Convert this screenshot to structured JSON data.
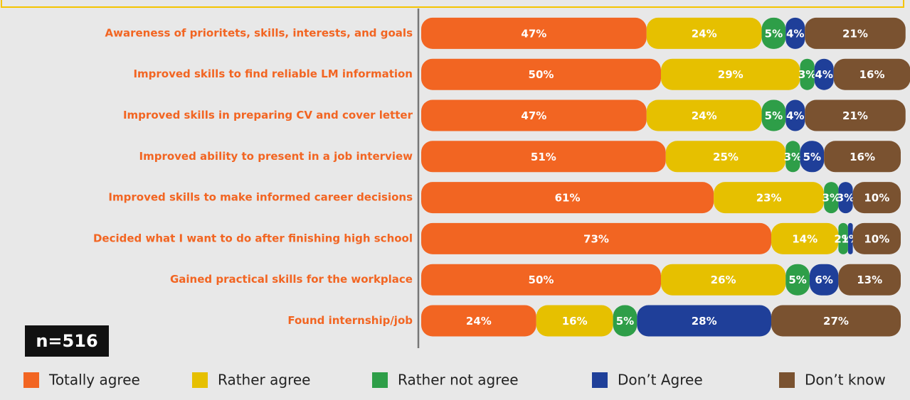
{
  "chart_data": {
    "type": "stacked-barh",
    "categories": [
      "Awareness of prioritets, skills, interests, and goals",
      "Improved skills to find reliable LM information",
      "Improved skills in preparing CV and cover letter",
      "Improved ability to present in a job interview",
      "Improved skills to make informed career decisions",
      "Decided what I want to do after finishing high school",
      "Gained practical skills for the workplace",
      "Found internship/job"
    ],
    "series": [
      {
        "name": "Totally agree",
        "color": "#f26522",
        "values": [
          47,
          50,
          47,
          51,
          61,
          73,
          50,
          24
        ],
        "value_labels": [
          "47%",
          "50%",
          "47%",
          "51%",
          "61%",
          "73%",
          "50%",
          "24%"
        ]
      },
      {
        "name": "Rather agree",
        "color": "#e6c000",
        "values": [
          24,
          29,
          24,
          25,
          23,
          14,
          26,
          16
        ],
        "value_labels": [
          "24%",
          "29%",
          "24%",
          "25%",
          "23%",
          "14%",
          "26%",
          "16%"
        ]
      },
      {
        "name": "Rather not agree",
        "color": "#2e9e48",
        "values": [
          5,
          3,
          5,
          3,
          3,
          2,
          5,
          5
        ],
        "value_labels": [
          "5%",
          "3%",
          "5%",
          "3%",
          "3%",
          "2%",
          "5%",
          "5%"
        ]
      },
      {
        "name": "Don’t Agree",
        "color": "#1f3f99",
        "values": [
          4,
          4,
          4,
          5,
          3,
          1,
          6,
          28
        ],
        "value_labels": [
          "4%",
          "4%",
          "4%",
          "5%",
          "3%",
          "1%",
          "6%",
          "28%"
        ]
      },
      {
        "name": "Don’t know",
        "color": "#7a5230",
        "values": [
          21,
          16,
          21,
          16,
          10,
          10,
          13,
          27
        ],
        "value_labels": [
          "21%",
          "16%",
          "21%",
          "16%",
          "10%",
          "10%",
          "13%",
          "27%"
        ]
      }
    ],
    "xlim": [
      0,
      100
    ],
    "annotation": "n=516"
  }
}
